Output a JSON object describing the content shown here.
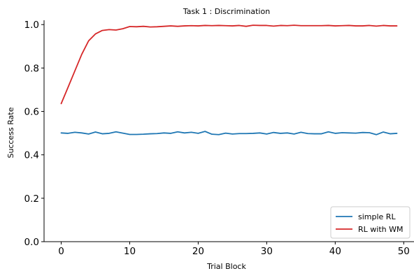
{
  "chart_data": {
    "type": "line",
    "title": "Task 1 : Discrimination",
    "xlabel": "Trial Block",
    "ylabel": "Success Rate",
    "xlim": [
      -2.5,
      51.5
    ],
    "ylim": [
      0.0,
      1.02
    ],
    "xticks": [
      0,
      10,
      20,
      30,
      40,
      50
    ],
    "yticks": [
      0.0,
      0.2,
      0.4,
      0.6,
      0.8,
      1.0
    ],
    "xtick_labels": [
      "0",
      "10",
      "20",
      "30",
      "40",
      "50"
    ],
    "ytick_labels": [
      "0.0",
      "0.2",
      "0.4",
      "0.6",
      "0.8",
      "1.0"
    ],
    "grid": false,
    "legend_position": "bottom-right",
    "x": [
      0,
      1,
      2,
      3,
      4,
      5,
      6,
      7,
      8,
      9,
      10,
      11,
      12,
      13,
      14,
      15,
      16,
      17,
      18,
      19,
      20,
      21,
      22,
      23,
      24,
      25,
      26,
      27,
      28,
      29,
      30,
      31,
      32,
      33,
      34,
      35,
      36,
      37,
      38,
      39,
      40,
      41,
      42,
      43,
      44,
      45,
      46,
      47,
      48,
      49
    ],
    "series": [
      {
        "name": "simple RL",
        "color": "#1f77b4",
        "values": [
          0.501,
          0.499,
          0.504,
          0.501,
          0.496,
          0.505,
          0.497,
          0.499,
          0.506,
          0.5,
          0.494,
          0.494,
          0.495,
          0.497,
          0.498,
          0.501,
          0.499,
          0.506,
          0.501,
          0.504,
          0.499,
          0.508,
          0.495,
          0.493,
          0.5,
          0.496,
          0.498,
          0.498,
          0.499,
          0.501,
          0.496,
          0.503,
          0.499,
          0.501,
          0.496,
          0.504,
          0.498,
          0.497,
          0.497,
          0.506,
          0.499,
          0.502,
          0.501,
          0.5,
          0.503,
          0.502,
          0.493,
          0.505,
          0.497,
          0.499
        ]
      },
      {
        "name": "RL with WM",
        "color": "#d62728",
        "values": [
          0.636,
          0.711,
          0.787,
          0.863,
          0.925,
          0.957,
          0.973,
          0.977,
          0.975,
          0.981,
          0.991,
          0.99,
          0.992,
          0.989,
          0.99,
          0.992,
          0.994,
          0.992,
          0.994,
          0.995,
          0.994,
          0.996,
          0.995,
          0.996,
          0.995,
          0.994,
          0.996,
          0.992,
          0.997,
          0.996,
          0.996,
          0.993,
          0.996,
          0.995,
          0.997,
          0.995,
          0.995,
          0.995,
          0.995,
          0.996,
          0.994,
          0.995,
          0.996,
          0.994,
          0.994,
          0.996,
          0.993,
          0.996,
          0.994,
          0.994
        ]
      }
    ]
  }
}
